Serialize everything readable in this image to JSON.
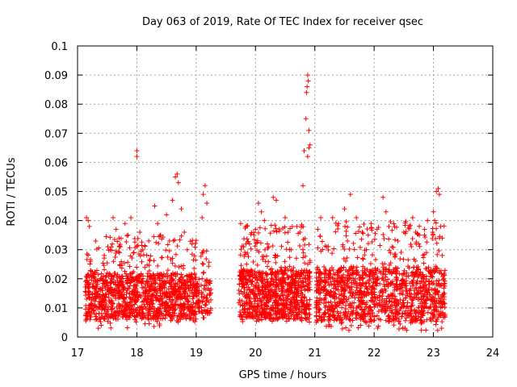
{
  "chart_data": {
    "type": "scatter",
    "title": "Day 063 of 2019, Rate Of TEC Index for receiver qsec",
    "xlabel": "GPS time / hours",
    "ylabel": "ROTI / TECUs",
    "xlim": [
      17,
      24
    ],
    "ylim": [
      0,
      0.1
    ],
    "grid": true,
    "marker": "plus",
    "color": "#ff0000",
    "x_ticks": [
      "17",
      "18",
      "19",
      "20",
      "21",
      "22",
      "23",
      "24"
    ],
    "y_ticks": [
      "0",
      "0.01",
      "0.02",
      "0.03",
      "0.04",
      "0.05",
      "0.06",
      "0.07",
      "0.08",
      "0.09",
      "0.1"
    ],
    "series": [
      {
        "name": "ROTI",
        "points": [
          [
            17.15,
            0.041
          ],
          [
            17.18,
            0.04
          ],
          [
            17.2,
            0.038
          ],
          [
            17.22,
            0.026
          ],
          [
            17.25,
            0.021
          ],
          [
            17.3,
            0.006
          ],
          [
            17.35,
            0.003
          ],
          [
            17.4,
            0.004
          ],
          [
            17.45,
            0.028
          ],
          [
            17.5,
            0.022
          ],
          [
            17.55,
            0.03
          ],
          [
            17.6,
            0.041
          ],
          [
            17.65,
            0.037
          ],
          [
            17.7,
            0.034
          ],
          [
            17.8,
            0.039
          ],
          [
            17.85,
            0.035
          ],
          [
            17.9,
            0.041
          ],
          [
            17.95,
            0.029
          ],
          [
            18.0,
            0.064
          ],
          [
            18.0,
            0.062
          ],
          [
            18.05,
            0.036
          ],
          [
            18.1,
            0.03
          ],
          [
            18.2,
            0.033
          ],
          [
            18.3,
            0.045
          ],
          [
            18.35,
            0.039
          ],
          [
            18.4,
            0.035
          ],
          [
            18.5,
            0.042
          ],
          [
            18.55,
            0.033
          ],
          [
            18.6,
            0.047
          ],
          [
            18.65,
            0.055
          ],
          [
            18.68,
            0.056
          ],
          [
            18.7,
            0.053
          ],
          [
            18.75,
            0.044
          ],
          [
            18.8,
            0.036
          ],
          [
            18.85,
            0.03
          ],
          [
            18.9,
            0.021
          ],
          [
            19.1,
            0.041
          ],
          [
            19.12,
            0.049
          ],
          [
            19.15,
            0.052
          ],
          [
            19.18,
            0.046
          ],
          [
            19.1,
            0.029
          ],
          [
            19.12,
            0.022
          ],
          [
            19.15,
            0.011
          ],
          [
            19.05,
            0.016
          ],
          [
            19.75,
            0.039
          ],
          [
            19.8,
            0.031
          ],
          [
            19.85,
            0.025
          ],
          [
            19.9,
            0.032
          ],
          [
            20.0,
            0.037
          ],
          [
            20.05,
            0.046
          ],
          [
            20.1,
            0.043
          ],
          [
            20.15,
            0.04
          ],
          [
            20.2,
            0.032
          ],
          [
            20.3,
            0.048
          ],
          [
            20.35,
            0.047
          ],
          [
            20.4,
            0.037
          ],
          [
            20.5,
            0.041
          ],
          [
            20.55,
            0.036
          ],
          [
            20.6,
            0.03
          ],
          [
            20.7,
            0.038
          ],
          [
            20.75,
            0.036
          ],
          [
            20.8,
            0.052
          ],
          [
            20.82,
            0.064
          ],
          [
            20.85,
            0.075
          ],
          [
            20.86,
            0.084
          ],
          [
            20.87,
            0.086
          ],
          [
            20.88,
            0.09
          ],
          [
            20.89,
            0.088
          ],
          [
            20.9,
            0.071
          ],
          [
            20.9,
            0.065
          ],
          [
            20.92,
            0.066
          ],
          [
            20.88,
            0.062
          ],
          [
            21.05,
            0.037
          ],
          [
            21.1,
            0.041
          ],
          [
            21.2,
            0.031
          ],
          [
            21.3,
            0.041
          ],
          [
            21.4,
            0.039
          ],
          [
            21.5,
            0.044
          ],
          [
            21.55,
            0.033
          ],
          [
            21.6,
            0.049
          ],
          [
            21.7,
            0.041
          ],
          [
            21.8,
            0.036
          ],
          [
            21.9,
            0.035
          ],
          [
            21.95,
            0.039
          ],
          [
            22.05,
            0.037
          ],
          [
            22.15,
            0.048
          ],
          [
            22.2,
            0.043
          ],
          [
            22.25,
            0.038
          ],
          [
            22.3,
            0.031
          ],
          [
            22.4,
            0.033
          ],
          [
            22.5,
            0.036
          ],
          [
            22.6,
            0.038
          ],
          [
            22.65,
            0.041
          ],
          [
            22.7,
            0.036
          ],
          [
            22.75,
            0.032
          ],
          [
            22.85,
            0.037
          ],
          [
            22.9,
            0.04
          ],
          [
            23.0,
            0.043
          ],
          [
            23.02,
            0.04
          ],
          [
            23.05,
            0.05
          ],
          [
            23.08,
            0.051
          ],
          [
            23.1,
            0.049
          ],
          [
            23.12,
            0.038
          ],
          [
            23.15,
            0.034
          ]
        ]
      }
    ],
    "bands": [
      {
        "x": [
          17.13,
          19.0
        ],
        "y": [
          0.003,
          0.035
        ],
        "core": [
          0.006,
          0.022
        ],
        "density": 1200
      },
      {
        "x": [
          19.0,
          19.25
        ],
        "y": [
          0.004,
          0.03
        ],
        "core": [
          0.008,
          0.02
        ],
        "density": 90
      },
      {
        "x": [
          19.72,
          20.92
        ],
        "y": [
          0.005,
          0.04
        ],
        "core": [
          0.006,
          0.023
        ],
        "density": 900
      },
      {
        "x": [
          21.02,
          23.2
        ],
        "y": [
          0.002,
          0.04
        ],
        "core": [
          0.005,
          0.024
        ],
        "density": 1300
      }
    ]
  }
}
